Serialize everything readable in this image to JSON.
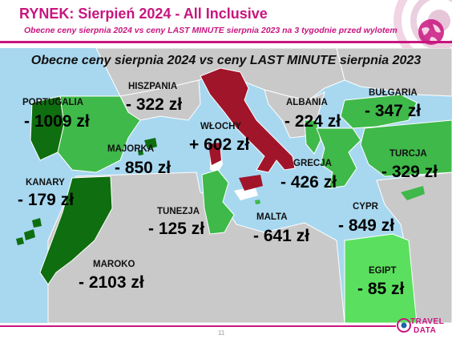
{
  "header": {
    "title": "RYNEK: Sierpień 2024 - All Inclusive",
    "subtitle": "Obecne ceny sierpnia 2024 vs ceny LAST MINUTE sierpnia 2023 na 3 tygodnie przed wylotem"
  },
  "map": {
    "title": "Obecne ceny sierpnia 2024 vs ceny LAST MINUTE sierpnia 2023",
    "colors": {
      "sea": "#a8d8f0",
      "land": "#c9c9c9",
      "increase": "#a0152a",
      "decrease_strong": "#0f6e0f",
      "decrease_medium": "#3fb94a",
      "decrease_light": "#5ae05e"
    },
    "destinations": [
      {
        "name": "PORTUGALIA",
        "value": "- 1009 zł",
        "change": -1009
      },
      {
        "name": "HISZPANIA",
        "value": "- 322 zł",
        "change": -322
      },
      {
        "name": "MAJORKA",
        "value": "- 850 zł",
        "change": -850
      },
      {
        "name": "KANARY",
        "value": "- 179 zł",
        "change": -179
      },
      {
        "name": "WŁOCHY",
        "value": "+ 602 zł",
        "change": 602
      },
      {
        "name": "ALBANIA",
        "value": "- 224 zł",
        "change": -224
      },
      {
        "name": "BUŁGARIA",
        "value": "- 347 zł",
        "change": -347
      },
      {
        "name": "TURCJA",
        "value": "- 329 zł",
        "change": -329
      },
      {
        "name": "GRECJA",
        "value": "- 426 zł",
        "change": -426
      },
      {
        "name": "TUNEZJA",
        "value": "- 125 zł",
        "change": -125
      },
      {
        "name": "MALTA",
        "value": "- 641 zł",
        "change": -641
      },
      {
        "name": "CYPR",
        "value": "- 849 zł",
        "change": -849
      },
      {
        "name": "MAROKO",
        "value": "- 2103 zł",
        "change": -2103
      },
      {
        "name": "EGIPT",
        "value": "- 85 zł",
        "change": -85
      }
    ]
  },
  "footer": {
    "page_number": "11",
    "logo_line1": "TRAVEL",
    "logo_line2": "DATA"
  }
}
